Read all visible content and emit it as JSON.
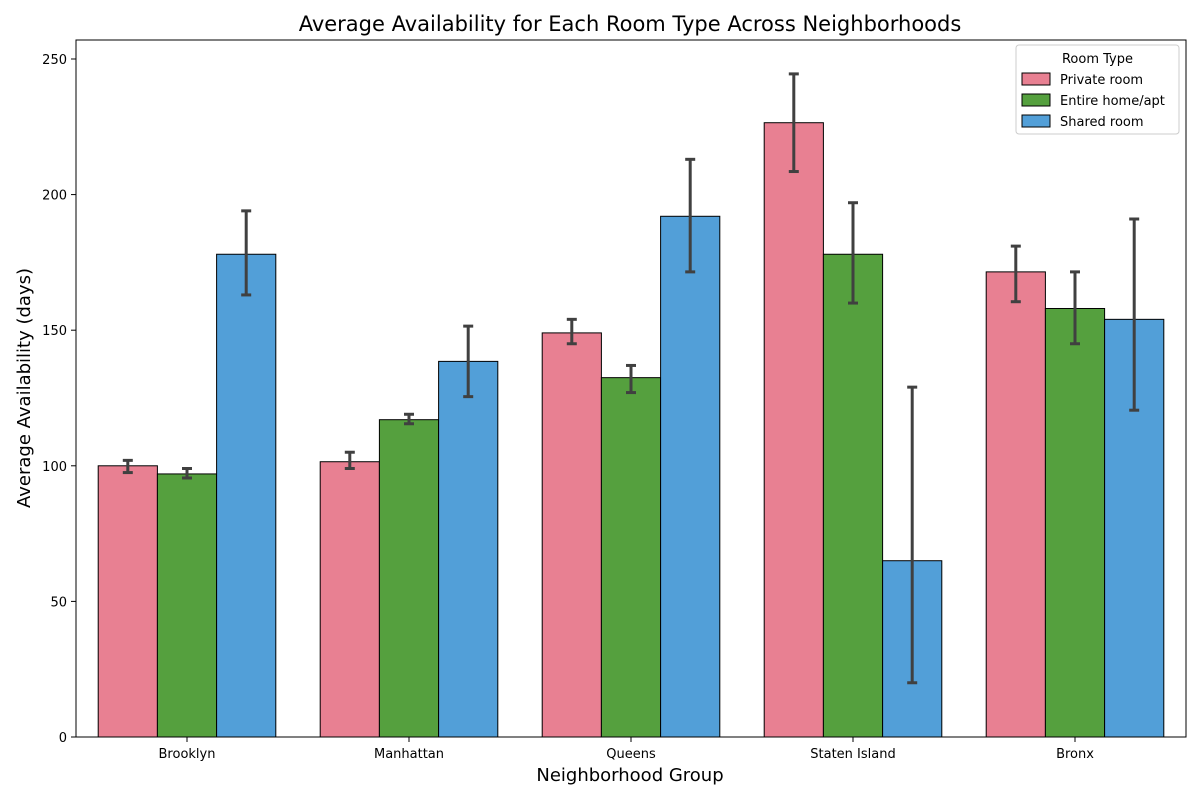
{
  "chart_data": {
    "type": "bar",
    "title": "Average Availability for Each Room Type Across Neighborhoods",
    "xlabel": "Neighborhood Group",
    "ylabel": "Average Availability (days)",
    "categories": [
      "Brooklyn",
      "Manhattan",
      "Queens",
      "Staten Island",
      "Bronx"
    ],
    "ylim": [
      0,
      257
    ],
    "yticks": [
      0,
      50,
      100,
      150,
      200,
      250
    ],
    "grid": false,
    "legend": {
      "title": "Room Type",
      "placement": "top-right"
    },
    "series": [
      {
        "name": "Private room",
        "color": "#e88092",
        "values": [
          100,
          101.5,
          149,
          226.5,
          171.5
        ],
        "error_low": [
          97.5,
          99,
          145,
          208.5,
          160.5
        ],
        "error_high": [
          102,
          105,
          154,
          244.5,
          181
        ]
      },
      {
        "name": "Entire home/apt",
        "color": "#55a03e",
        "values": [
          97,
          117,
          132.5,
          178,
          158
        ],
        "error_low": [
          95.5,
          115.5,
          127,
          160,
          145
        ],
        "error_high": [
          99,
          119,
          137,
          197,
          171.5
        ]
      },
      {
        "name": "Shared room",
        "color": "#529fd8",
        "values": [
          178,
          138.5,
          192,
          65,
          154
        ],
        "error_low": [
          163,
          125.5,
          171.5,
          20,
          120.5
        ],
        "error_high": [
          194,
          151.5,
          213,
          129,
          191
        ]
      }
    ]
  }
}
